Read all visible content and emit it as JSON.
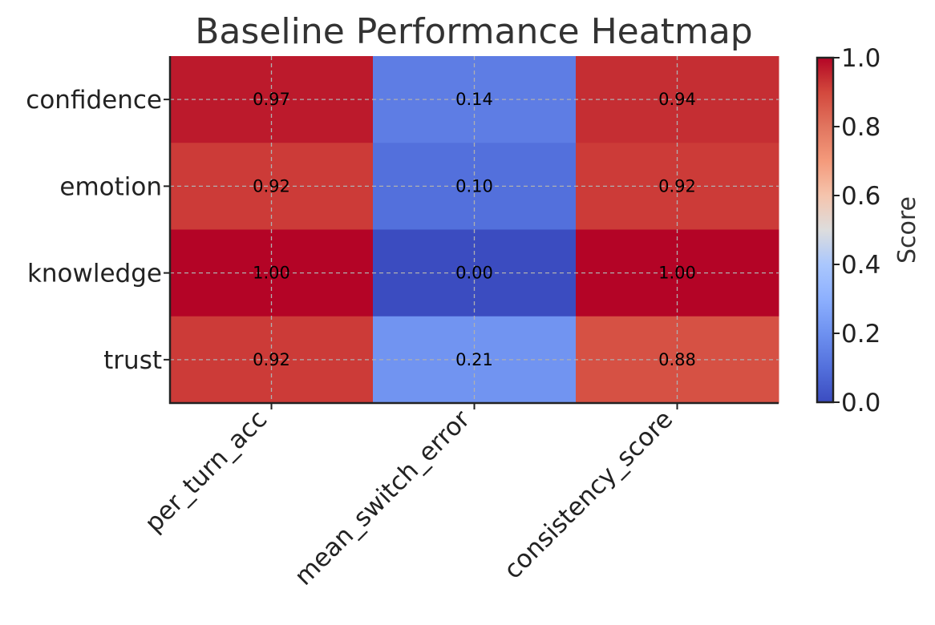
{
  "chart_data": {
    "type": "heatmap",
    "title": "Baseline Performance Heatmap",
    "rows": [
      "confidence",
      "emotion",
      "knowledge",
      "trust"
    ],
    "columns": [
      "per_turn_acc",
      "mean_switch_error",
      "consistency_score"
    ],
    "values": [
      [
        0.97,
        0.14,
        0.94
      ],
      [
        0.92,
        0.1,
        0.92
      ],
      [
        1.0,
        0.0,
        1.0
      ],
      [
        0.92,
        0.21,
        0.88
      ]
    ],
    "value_labels": [
      [
        "0.97",
        "0.14",
        "0.94"
      ],
      [
        "0.92",
        "0.10",
        "0.92"
      ],
      [
        "1.00",
        "0.00",
        "1.00"
      ],
      [
        "0.92",
        "0.21",
        "0.88"
      ]
    ],
    "colormap": "coolwarm",
    "vmin": 0.0,
    "vmax": 1.0,
    "grid": true,
    "colorbar": {
      "label": "Score",
      "ticks": [
        0.0,
        0.2,
        0.4,
        0.6,
        0.8,
        1.0
      ],
      "tick_labels": [
        "0.0",
        "0.2",
        "0.4",
        "0.6",
        "0.8",
        "1.0"
      ]
    }
  }
}
